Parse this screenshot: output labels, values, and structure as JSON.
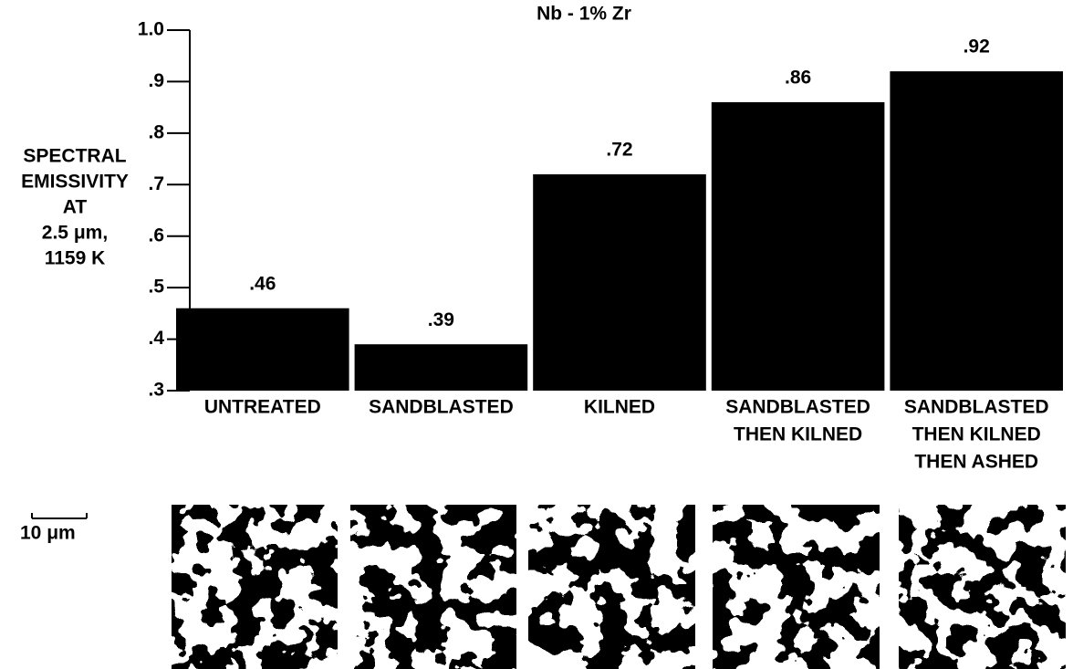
{
  "chart_data": {
    "type": "bar",
    "title": "Nb - 1% Zr",
    "ylabel": [
      "SPECTRAL",
      "EMISSIVITY",
      "AT",
      "2.5 μm,",
      "1159 K"
    ],
    "categories": [
      [
        "UNTREATED"
      ],
      [
        "SANDBLASTED"
      ],
      [
        "KILNED"
      ],
      [
        "SANDBLASTED",
        "THEN KILNED"
      ],
      [
        "SANDBLASTED",
        "THEN KILNED",
        "THEN ASHED"
      ]
    ],
    "values": [
      0.46,
      0.39,
      0.72,
      0.86,
      0.92
    ],
    "value_labels": [
      ".46",
      ".39",
      ".72",
      ".86",
      ".92"
    ],
    "color": "#000000",
    "ylim": [
      0.3,
      1.0
    ],
    "yticks": [
      {
        "value": 0.3,
        "label": ".3"
      },
      {
        "value": 0.4,
        "label": ".4"
      },
      {
        "value": 0.5,
        "label": ".5"
      },
      {
        "value": 0.6,
        "label": ".6"
      },
      {
        "value": 0.7,
        "label": ".7"
      },
      {
        "value": 0.8,
        "label": ".8"
      },
      {
        "value": 0.9,
        "label": ".9"
      },
      {
        "value": 1.0,
        "label": "1.0"
      }
    ],
    "grid": false
  },
  "scale_bar_label": "10 μm"
}
